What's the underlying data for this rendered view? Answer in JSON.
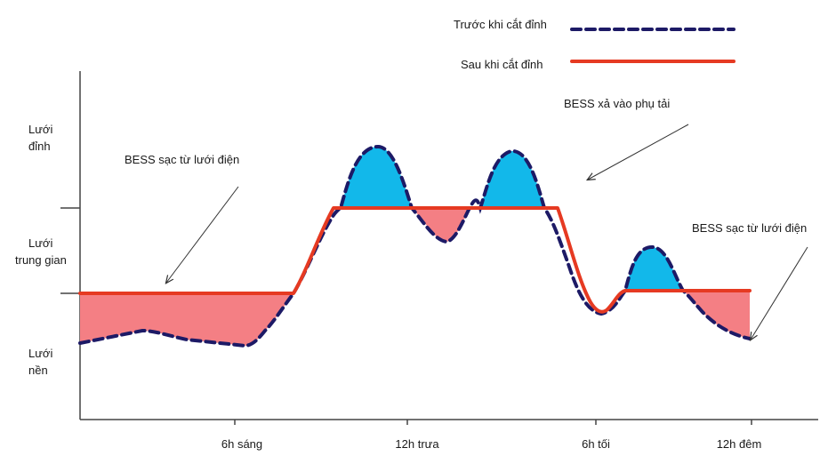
{
  "legend": {
    "before_label": "Trước khi cắt đỉnh",
    "after_label": "Sau khi cắt đỉnh"
  },
  "y_levels": {
    "peak": [
      "Lưới",
      "đỉnh"
    ],
    "mid": [
      "Lưới",
      "trung gian"
    ],
    "base": [
      "Lưới",
      "nền"
    ]
  },
  "x_ticks": [
    "6h sáng",
    "12h trưa",
    "6h tối",
    "12h đêm"
  ],
  "annotations": {
    "charge_left": "BESS sạc từ lưới điện",
    "discharge": "BESS xả vào phụ tải",
    "charge_right": "BESS sạc từ lưới điện"
  },
  "colors": {
    "before_line": "#1d1a66",
    "after_line": "#e63a22",
    "discharge_fill": "#12b8ea",
    "charge_fill": "#f47f84",
    "axis": "#444444"
  }
}
